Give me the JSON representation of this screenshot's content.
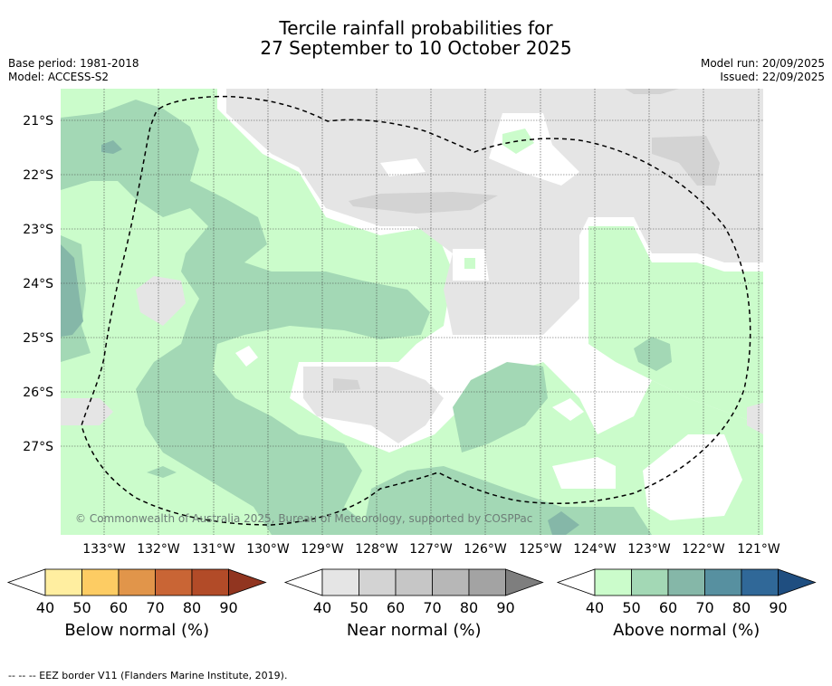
{
  "title_line1": "Tercile rainfall probabilities for",
  "title_line2": "27 September to 10 October 2025",
  "meta_left": {
    "base_period": "Base period: 1981-2018",
    "model": "Model: ACCESS-S2"
  },
  "meta_right": {
    "model_run": "Model run: 20/09/2025",
    "issued": "Issued: 22/09/2025"
  },
  "map": {
    "lat_labels": [
      "21°S",
      "22°S",
      "23°S",
      "24°S",
      "25°S",
      "26°S",
      "27°S"
    ],
    "lon_labels": [
      "133°W",
      "132°W",
      "131°W",
      "130°W",
      "129°W",
      "128°W",
      "127°W",
      "126°W",
      "125°W",
      "124°W",
      "123°W",
      "122°W",
      "121°W"
    ],
    "copyright": "© Commonwealth of Australia 2025, Bureau of Meteorology, supported by COSPPac"
  },
  "colorbars": [
    {
      "label": "Below normal (%)",
      "ticks": [
        "40",
        "50",
        "60",
        "70",
        "80",
        "90"
      ],
      "colors": [
        "#ffeea0",
        "#fdcc63",
        "#e1954a",
        "#c96535",
        "#b24b28",
        "#913520"
      ]
    },
    {
      "label": "Near normal (%)",
      "ticks": [
        "40",
        "50",
        "60",
        "70",
        "80",
        "90"
      ],
      "colors": [
        "#e5e5e5",
        "#d3d3d3",
        "#c6c6c6",
        "#b7b7b7",
        "#a3a3a3",
        "#7e7e7e"
      ]
    },
    {
      "label": "Above normal (%)",
      "ticks": [
        "40",
        "50",
        "60",
        "70",
        "80",
        "90"
      ],
      "colors": [
        "#cbfccb",
        "#a3d8b5",
        "#85b7a8",
        "#5790a0",
        "#306898",
        "#1f4e80"
      ]
    }
  ],
  "footer": "--  --  -- EEZ border V11 (Flanders Marine Institute, 2019)."
}
